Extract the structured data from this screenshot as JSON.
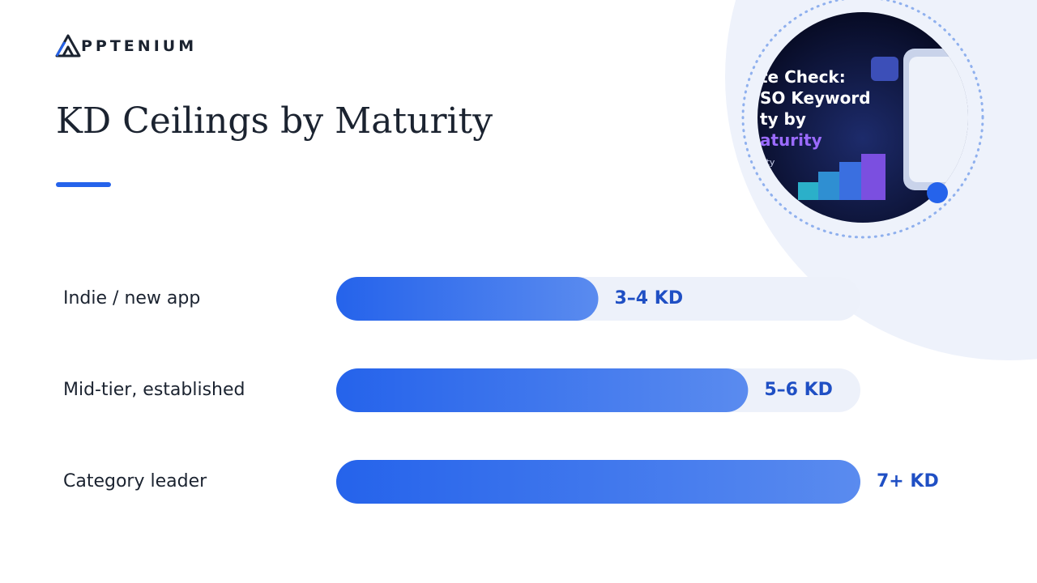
{
  "logo": "PPTENIUM",
  "thumbnail_text": [
    "te Check:",
    "SO Keyword",
    "ty by",
    "aturity",
    "rity"
  ],
  "chart_data": {
    "type": "hbar",
    "title": "KD Ceilings by Maturity",
    "categories": [
      "Indie / new app",
      "Mid-tier, established",
      "Category leader"
    ],
    "values": [
      3.5,
      5.5,
      7
    ],
    "value_labels": [
      "3–4 KD",
      "5–6 KD",
      "7+ KD"
    ],
    "xlim": [
      0,
      7
    ],
    "color": "#2563eb"
  }
}
